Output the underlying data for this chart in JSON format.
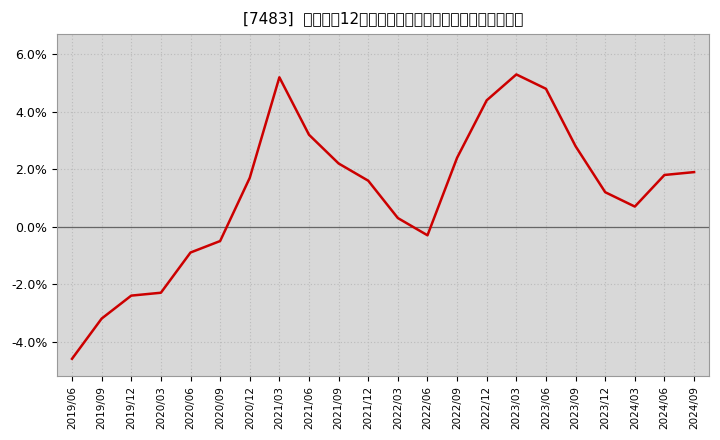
{
  "title": "[7483]  売上高の12か月移動合計の対前年同期増減率の推移",
  "line_color": "#cc0000",
  "background_color": "#ffffff",
  "plot_bg_color": "#d8d8d8",
  "grid_color": "#bbbbbb",
  "ylim": [
    -0.052,
    0.067
  ],
  "yticks": [
    -0.04,
    -0.02,
    0.0,
    0.02,
    0.04,
    0.06
  ],
  "ytick_labels": [
    "-4.0%",
    "-2.0%",
    "0.0%",
    "2.0%",
    "4.0%",
    "6.0%"
  ],
  "dates": [
    "2019/06",
    "2019/09",
    "2019/12",
    "2020/03",
    "2020/06",
    "2020/09",
    "2020/12",
    "2021/03",
    "2021/06",
    "2021/09",
    "2021/12",
    "2022/03",
    "2022/06",
    "2022/09",
    "2022/12",
    "2023/03",
    "2023/06",
    "2023/09",
    "2023/12",
    "2024/03",
    "2024/06",
    "2024/09"
  ],
  "values": [
    -0.046,
    -0.032,
    -0.024,
    -0.023,
    -0.009,
    -0.005,
    0.017,
    0.052,
    0.032,
    0.022,
    0.016,
    0.003,
    -0.003,
    0.024,
    0.044,
    0.053,
    0.048,
    0.028,
    0.012,
    0.007,
    0.018,
    0.019
  ]
}
